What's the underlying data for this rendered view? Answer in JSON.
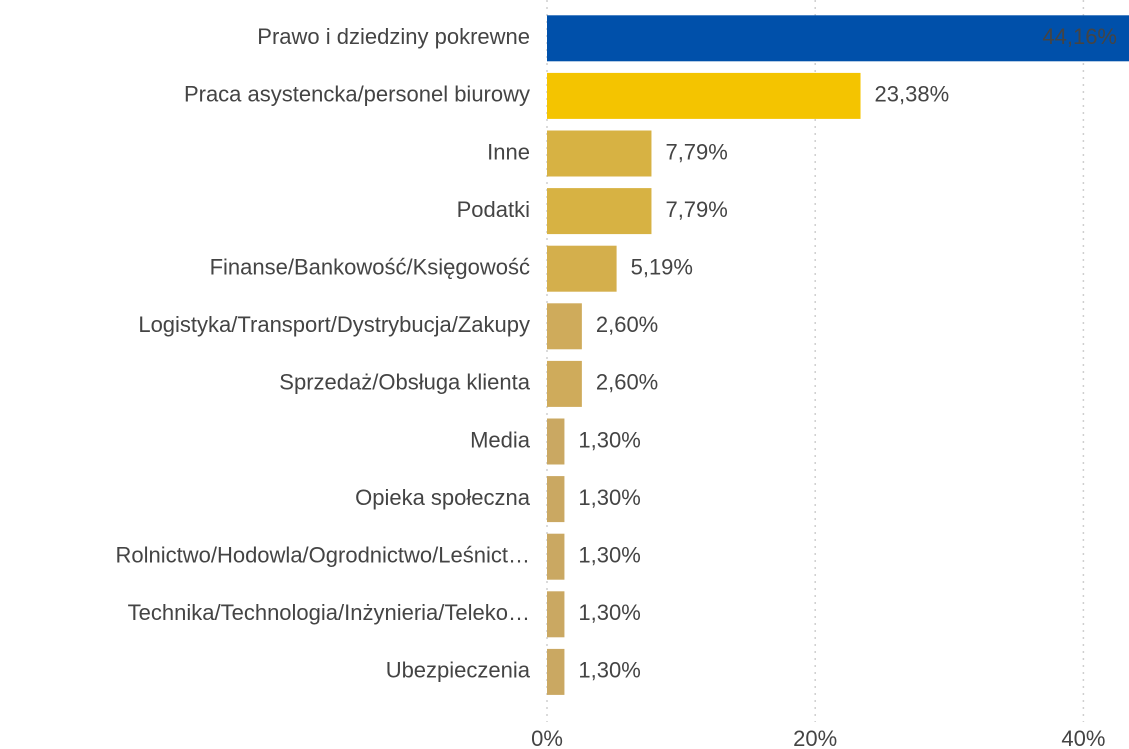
{
  "chart_data": {
    "type": "hbar",
    "categories": [
      "Prawo i dziedziny pokrewne",
      "Praca asystencka/personel biurowy",
      "Inne",
      "Podatki",
      "Finanse/Bankowość/Księgowość",
      "Logistyka/Transport/Dystrybucja/Zakupy",
      "Sprzedaż/Obsługa klienta",
      "Media",
      "Opieka społeczna",
      "Rolnictwo/Hodowla/Ogrodnictwo/Leśnict…",
      "Technika/Technologia/Inżynieria/Teleko…",
      "Ubezpieczenia"
    ],
    "values": [
      44.16,
      23.38,
      7.79,
      7.79,
      5.19,
      2.6,
      2.6,
      1.3,
      1.3,
      1.3,
      1.3,
      1.3
    ],
    "value_labels": [
      "44,16%",
      "23,38%",
      "7,79%",
      "7,79%",
      "5,19%",
      "2,60%",
      "2,60%",
      "1,30%",
      "1,30%",
      "1,30%",
      "1,30%",
      "1,30%"
    ],
    "colors": [
      "#0050aa",
      "#f4c400",
      "#d7b243",
      "#d7b243",
      "#d4af4c",
      "#cfab5b",
      "#cfab5b",
      "#caa862",
      "#caa862",
      "#caa862",
      "#caa862",
      "#caa862"
    ],
    "xlim": [
      0,
      43.4
    ],
    "xticks": [
      {
        "value": 0,
        "label": "0%"
      },
      {
        "value": 20,
        "label": "20%"
      },
      {
        "value": 40,
        "label": "40%"
      }
    ],
    "grid": true
  }
}
